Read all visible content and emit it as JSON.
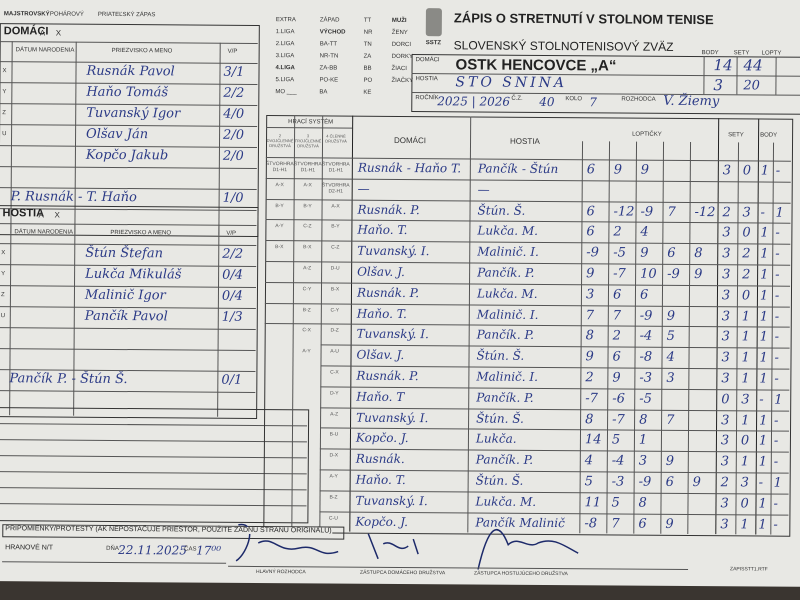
{
  "match_type": [
    "MAJSTROVSKÝ",
    "POHÁROVÝ",
    "PRIATEĽSKÝ ZÁPAS"
  ],
  "league_options": [
    [
      "EXTRA",
      "1.LIGA",
      "2.LIGA",
      "3.LIGA",
      "4.LIGA",
      "5.LIGA",
      "MO ___"
    ],
    [
      "ZÁPAD",
      "VÝCHOD",
      "BA-TT",
      "NR-TN",
      "ZA-BB",
      "PO-KE",
      "BA"
    ],
    [
      "TT",
      "NR",
      "TN",
      "ZA",
      "BB",
      "PO",
      "KE"
    ],
    [
      "MUŽI",
      "ŽENY",
      "DORCI",
      "DORKY",
      "ŽIACI",
      "ŽIAČKY"
    ]
  ],
  "header": {
    "title": "ZÁPIS O STRETNUTÍ V STOLNOM TENISE",
    "federation": "SLOVENSKÝ STOLNOTENISOVÝ ZVÄZ",
    "logo_text": "SSTZ",
    "labels": {
      "home": "DOMÁCI",
      "away": "HOSTIA",
      "season": "ROČNÍK",
      "match_no": "Č.Z.",
      "round": "KOLO",
      "referee": "ROZHODCA",
      "points": "BODY",
      "sets": "SETY",
      "balls": "LOPTY"
    },
    "home_team": "OSTK HENCOVCE „A“",
    "away_team": "STO SNINA",
    "home_points": "14",
    "home_sets": "44",
    "away_points": "3",
    "away_sets": "20",
    "season": "2025 | 2026",
    "match_no": "40",
    "round": "7",
    "referee": "V. Žiemy"
  },
  "home_roster": {
    "title": "DOMÁCI",
    "ax": [
      "A",
      "X"
    ],
    "cols": [
      "DÁTUM NARODENIA",
      "PRIEZVISKO A MENO",
      "V/P"
    ],
    "players": [
      {
        "pos": "X",
        "name": "Rusnák Pavol",
        "vp": "3/1"
      },
      {
        "pos": "Y",
        "name": "Haňo Tomáš",
        "vp": "2/2"
      },
      {
        "pos": "Z",
        "name": "Tuvanský Igor",
        "vp": "4/0"
      },
      {
        "pos": "U",
        "name": "Olšav Ján",
        "vp": "2/0"
      },
      {
        "pos": "",
        "name": "Kopčo Jakub",
        "vp": "2/0"
      }
    ],
    "doubles": {
      "name": "P. Rusnák - T. Haňo",
      "vp": "1/0"
    }
  },
  "away_roster": {
    "title": "HOSTIA",
    "ax": [
      "A",
      "X"
    ],
    "cols": [
      "DÁTUM NARODENIA",
      "PRIEZVISKO A MENO",
      "V/P"
    ],
    "players": [
      {
        "pos": "X",
        "name": "Štún Štefan",
        "vp": "2/2"
      },
      {
        "pos": "Y",
        "name": "Lukča Mikuláš",
        "vp": "0/4"
      },
      {
        "pos": "Z",
        "name": "Malinič Igor",
        "vp": "0/4"
      },
      {
        "pos": "U",
        "name": "Pančík Pavol",
        "vp": "1/3"
      }
    ],
    "doubles": {
      "name": "Pančík P. - Štún Š.",
      "vp": "0/1"
    }
  },
  "matches_header": {
    "system": "HRACÍ SYSTÉM",
    "sys_cols": [
      "2 DVOJČLENNÉ DRUŽSTVÁ",
      "3 TROJČLENNÉ DRUŽSTVÁ",
      "4 ČLENNÉ DRUŽSTVÁ"
    ],
    "home": "DOMÁCI",
    "away": "HOSTIA",
    "balls": "LOPTIČKY",
    "sets": "SETY",
    "points": "BODY"
  },
  "matches": [
    {
      "sys": [
        "ŠTVORHRA D1-H1",
        "ŠTVORHRA D1-H1",
        "ŠTVORHRA D1-H1"
      ],
      "home": "Rusnák - Haňo T.",
      "away": "Pančík - Štún",
      "balls": [
        "6",
        "9",
        "9",
        "",
        ""
      ],
      "sets": [
        "3",
        "0"
      ],
      "body": [
        "1",
        "-"
      ]
    },
    {
      "sys": [
        "A-X",
        "A-X",
        "ŠTVORHRA D2-H1"
      ],
      "home": "—",
      "away": "—",
      "balls": [
        "",
        "",
        "",
        "",
        ""
      ],
      "sets": [
        "",
        ""
      ],
      "body": [
        "",
        ""
      ]
    },
    {
      "sys": [
        "B-Y",
        "B-Y",
        "A-X"
      ],
      "home": "Rusnák. P.",
      "away": "Štún. Š.",
      "balls": [
        "6",
        "-12",
        "-9",
        "7",
        "-12"
      ],
      "sets": [
        "2",
        "3"
      ],
      "body": [
        "-",
        "1"
      ]
    },
    {
      "sys": [
        "A-Y",
        "C-Z",
        "B-Y"
      ],
      "home": "Haňo. T.",
      "away": "Lukča. M.",
      "balls": [
        "6",
        "2",
        "4",
        "",
        ""
      ],
      "sets": [
        "3",
        "0"
      ],
      "body": [
        "1",
        "-"
      ]
    },
    {
      "sys": [
        "B-X",
        "B-X",
        "C-Z"
      ],
      "home": "Tuvanský. I.",
      "away": "Malinič. I.",
      "balls": [
        "-9",
        "-5",
        "9",
        "6",
        "8"
      ],
      "sets": [
        "3",
        "2"
      ],
      "body": [
        "1",
        "-"
      ]
    },
    {
      "sys": [
        "",
        "A-Z",
        "D-U"
      ],
      "home": "Olšav. J.",
      "away": "Pančík. P.",
      "balls": [
        "9",
        "-7",
        "10",
        "-9",
        "9"
      ],
      "sets": [
        "3",
        "2"
      ],
      "body": [
        "1",
        "-"
      ]
    },
    {
      "sys": [
        "",
        "C-Y",
        "B-X"
      ],
      "home": "Rusnák. P.",
      "away": "Lukča. M.",
      "balls": [
        "3",
        "6",
        "6",
        "",
        ""
      ],
      "sets": [
        "3",
        "0"
      ],
      "body": [
        "1",
        "-"
      ]
    },
    {
      "sys": [
        "",
        "B-Z",
        "C-Y"
      ],
      "home": "Haňo. T.",
      "away": "Malinič. I.",
      "balls": [
        "7",
        "7",
        "-9",
        "9",
        ""
      ],
      "sets": [
        "3",
        "1"
      ],
      "body": [
        "1",
        "-"
      ]
    },
    {
      "sys": [
        "",
        "C-X",
        "D-Z"
      ],
      "home": "Tuvanský. I.",
      "away": "Pančík. P.",
      "balls": [
        "8",
        "2",
        "-4",
        "5",
        ""
      ],
      "sets": [
        "3",
        "1"
      ],
      "body": [
        "1",
        "-"
      ]
    },
    {
      "sys": [
        "",
        "A-Y",
        "A-U"
      ],
      "home": "Olšav. J.",
      "away": "Štún. Š.",
      "balls": [
        "9",
        "6",
        "-8",
        "4",
        ""
      ],
      "sets": [
        "3",
        "1"
      ],
      "body": [
        "1",
        "-"
      ]
    },
    {
      "sys": [
        "",
        "",
        "C-X"
      ],
      "home": "Rusnák. P.",
      "away": "Malinič. I.",
      "balls": [
        "2",
        "9",
        "-3",
        "3",
        ""
      ],
      "sets": [
        "3",
        "1"
      ],
      "body": [
        "1",
        "-"
      ]
    },
    {
      "sys": [
        "",
        "",
        "D-Y"
      ],
      "home": "Haňo. T",
      "away": "Pančík. P.",
      "balls": [
        "-7",
        "-6",
        "-5",
        "",
        ""
      ],
      "sets": [
        "0",
        "3"
      ],
      "body": [
        "-",
        "1"
      ]
    },
    {
      "sys": [
        "",
        "",
        "A-Z"
      ],
      "home": "Tuvanský. I.",
      "away": "Štún. Š.",
      "balls": [
        "8",
        "-7",
        "8",
        "7",
        ""
      ],
      "sets": [
        "3",
        "1"
      ],
      "body": [
        "1",
        "-"
      ]
    },
    {
      "sys": [
        "",
        "",
        "B-U"
      ],
      "home": "Kopčo. J.",
      "away": "Lukča.",
      "balls": [
        "14",
        "5",
        "1",
        "",
        ""
      ],
      "sets": [
        "3",
        "0"
      ],
      "body": [
        "1",
        "-"
      ]
    },
    {
      "sys": [
        "",
        "",
        "D-X"
      ],
      "home": "Rusnák.",
      "away": "Pančík. P.",
      "balls": [
        "4",
        "-4",
        "3",
        "9",
        ""
      ],
      "sets": [
        "3",
        "1"
      ],
      "body": [
        "1",
        "-"
      ]
    },
    {
      "sys": [
        "",
        "",
        "A-Y"
      ],
      "home": "Haňo. T.",
      "away": "Štún. Š.",
      "balls": [
        "5",
        "-3",
        "-9",
        "6",
        "9"
      ],
      "sets": [
        "2",
        "3"
      ],
      "body": [
        "-",
        "1"
      ]
    },
    {
      "sys": [
        "",
        "",
        "B-Z"
      ],
      "home": "Tuvanský. I.",
      "away": "Lukča. M.",
      "balls": [
        "11",
        "5",
        "8",
        "",
        ""
      ],
      "sets": [
        "3",
        "0"
      ],
      "body": [
        "1",
        "-"
      ]
    },
    {
      "sys": [
        "",
        "",
        "C-U"
      ],
      "home": "Kopčo. J.",
      "away": "Pančík Malinič",
      "balls": [
        "-8",
        "7",
        "6",
        "9",
        ""
      ],
      "sets": [
        "3",
        "1"
      ],
      "body": [
        "1",
        "-"
      ]
    }
  ],
  "footer": {
    "remarks_label": "PRIPOMIENKY/PROTESTY (AK NEPOSTAČUJE PRIESTOR, POUŽITE ZADNÚ STRANU ORIGINÁLU)",
    "venue_label": "HRANOVÉ N/T",
    "date_label": "DŇA",
    "date": "22.11.2025",
    "time_label": "ČAS",
    "time": "17⁰⁰",
    "sig_referee": "HLAVNÝ ROZHODCA",
    "sig_home": "ZÁSTUPCA DOMÁCEHO DRUŽSTVA",
    "sig_away": "ZÁSTUPCA HOSTUJÚCEHO DRUŽSTVA",
    "form_code": "ZAPISSTT1.RTF"
  }
}
